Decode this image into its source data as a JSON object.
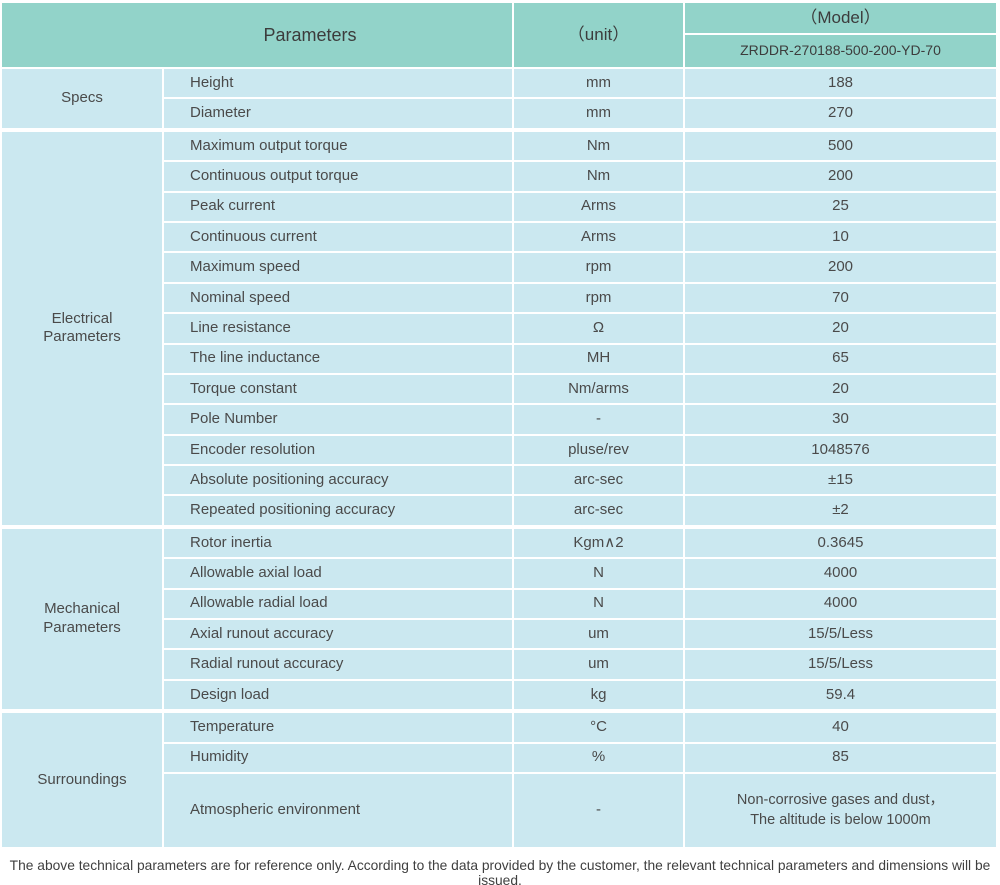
{
  "header": {
    "parameters_label": "Parameters",
    "unit_label": "（unit）",
    "model_label": "（Model）",
    "model_number": "ZRDDR-270188-500-200-YD-70"
  },
  "sections": [
    {
      "label": "Specs",
      "rows": [
        {
          "name": "Height",
          "unit": "mm",
          "value": "188"
        },
        {
          "name": "Diameter",
          "unit": "mm",
          "value": "270"
        }
      ]
    },
    {
      "label": "Electrical\nParameters",
      "rows": [
        {
          "name": "Maximum output torque",
          "unit": "Nm",
          "value": "500"
        },
        {
          "name": "Continuous output torque",
          "unit": "Nm",
          "value": "200"
        },
        {
          "name": "Peak current",
          "unit": "Arms",
          "value": "25"
        },
        {
          "name": "Continuous current",
          "unit": "Arms",
          "value": "10"
        },
        {
          "name": "Maximum speed",
          "unit": "rpm",
          "value": "200"
        },
        {
          "name": "Nominal speed",
          "unit": "rpm",
          "value": "70"
        },
        {
          "name": "Line resistance",
          "unit": "Ω",
          "value": "20"
        },
        {
          "name": "The line inductance",
          "unit": "MH",
          "value": "65"
        },
        {
          "name": "Torque constant",
          "unit": "Nm/arms",
          "value": "20"
        },
        {
          "name": "Pole Number",
          "unit": "-",
          "value": "30"
        },
        {
          "name": "Encoder resolution",
          "unit": "pluse/rev",
          "value": "1048576"
        },
        {
          "name": "Absolute positioning accuracy",
          "unit": "arc-sec",
          "value": "±15"
        },
        {
          "name": "Repeated positioning accuracy",
          "unit": "arc-sec",
          "value": "±2"
        }
      ]
    },
    {
      "label": "Mechanical\nParameters",
      "rows": [
        {
          "name": "Rotor inertia",
          "unit": "Kgm∧2",
          "value": "0.3645"
        },
        {
          "name": "Allowable axial load",
          "unit": "N",
          "value": "4000"
        },
        {
          "name": "Allowable radial load",
          "unit": "N",
          "value": "4000"
        },
        {
          "name": "Axial runout accuracy",
          "unit": "um",
          "value": "15/5/Less"
        },
        {
          "name": "Radial runout accuracy",
          "unit": "um",
          "value": "15/5/Less"
        },
        {
          "name": "Design load",
          "unit": "kg",
          "value": "59.4"
        }
      ]
    },
    {
      "label": "Surroundings",
      "rows": [
        {
          "name": "Temperature",
          "unit": "°C",
          "value": "40"
        },
        {
          "name": "Humidity",
          "unit": "%",
          "value": "85"
        },
        {
          "name": "Atmospheric environment",
          "unit": "-",
          "value": "Non-corrosive gases and dust，\nThe altitude is below 1000m"
        }
      ]
    }
  ],
  "footnote": "The above technical parameters are for reference only. According to the data provided by the customer, the relevant technical parameters and dimensions will be issued.",
  "colors": {
    "header_bg": "#92d3c9",
    "row_bg": "#cbe8f0",
    "cell_text": "#4a4a4a",
    "footnote_text": "#3f3f3f",
    "divider": "#ffffff"
  }
}
